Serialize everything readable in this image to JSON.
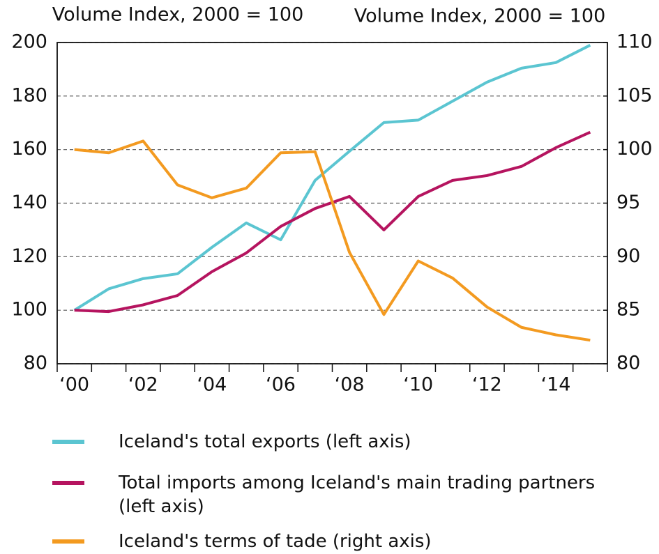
{
  "chart_data": {
    "type": "line",
    "ylabel": "Volume Index, 2000 = 100",
    "y2label": "Volume Index, 2000 = 100",
    "categories": [
      "‘00",
      null,
      "‘02",
      null,
      "‘04",
      null,
      "‘06",
      null,
      "‘08",
      null,
      "‘10",
      null,
      "‘12",
      null,
      "‘14",
      null
    ],
    "series": [
      {
        "name": "Iceland's total exports (left axis)",
        "color": "#5bc5d1",
        "values": [
          100,
          108,
          111.8,
          113.6,
          123.5,
          132.6,
          126.3,
          148.5,
          159.4,
          170.1,
          171,
          178.1,
          185.2,
          190.4,
          192.5,
          199
        ]
      },
      {
        "name": "Total imports among Iceland's main trading partners (left axis)",
        "color": "#b5145f",
        "values": [
          100,
          99.5,
          102,
          105.5,
          114.4,
          121.4,
          131.3,
          138,
          142.5,
          130,
          142.5,
          148.5,
          150.3,
          153.7,
          160.7,
          166.5
        ]
      },
      {
        "name": "Iceland's terms of tade (right axis)",
        "color": "#f39a20",
        "axis": "y2",
        "values": [
          100,
          99.7,
          100.8,
          96.7,
          95.5,
          96.4,
          99.7,
          99.8,
          90.4,
          84.6,
          89.6,
          88,
          85.3,
          83.4,
          82.7,
          82.2
        ]
      }
    ],
    "ylim": [
      80,
      200
    ],
    "yticks": [
      80,
      100,
      120,
      140,
      160,
      180,
      200
    ],
    "y2lim": [
      80,
      110
    ],
    "y2ticks": [
      80,
      85,
      90,
      95,
      100,
      105,
      110
    ],
    "grid": true
  }
}
